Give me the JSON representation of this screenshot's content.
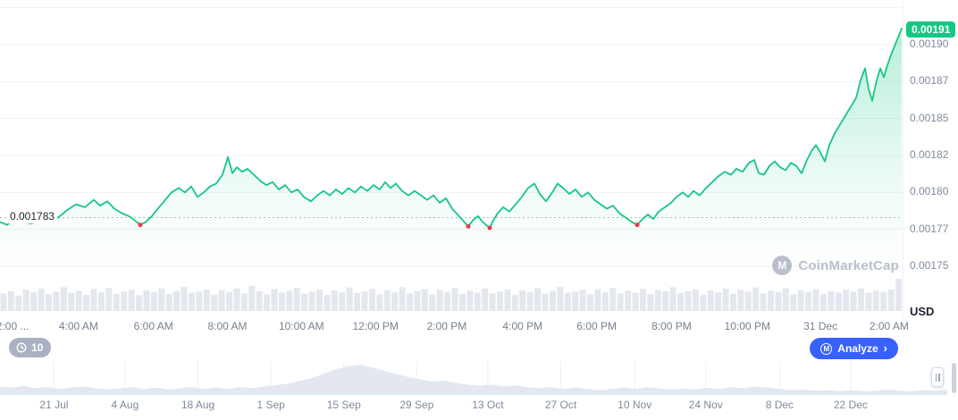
{
  "chart_data": [
    {
      "type": "line",
      "name": "price",
      "unit": "USD",
      "scale": 1e-06,
      "line_color": "#16c784",
      "marker_color": "#ea3943",
      "grid": true,
      "legend": "none",
      "current_price": {
        "label": "0.00191",
        "value": 1910
      },
      "previous_close": {
        "label": "0.001783",
        "value": 1783
      },
      "ylim": [
        1743,
        1918
      ],
      "yticks": [
        {
          "label": "",
          "value": 1925
        },
        {
          "label": "0.00190",
          "value": 1900
        },
        {
          "label": "0.00187",
          "value": 1875
        },
        {
          "label": "0.00185",
          "value": 1850
        },
        {
          "label": "0.00182",
          "value": 1825
        },
        {
          "label": "0.00180",
          "value": 1800
        },
        {
          "label": "0.00177",
          "value": 1775
        },
        {
          "label": "0.00175",
          "value": 1750
        }
      ],
      "xticks": [
        {
          "label": "2:00 ...",
          "pos": 0.014
        },
        {
          "label": "4:00 AM",
          "pos": 0.087
        },
        {
          "label": "6:00 AM",
          "pos": 0.17
        },
        {
          "label": "8:00 AM",
          "pos": 0.252
        },
        {
          "label": "10:00 AM",
          "pos": 0.334
        },
        {
          "label": "12:00 PM",
          "pos": 0.416
        },
        {
          "label": "2:00 PM",
          "pos": 0.495
        },
        {
          "label": "4:00 PM",
          "pos": 0.579
        },
        {
          "label": "6:00 PM",
          "pos": 0.661
        },
        {
          "label": "8:00 PM",
          "pos": 0.744
        },
        {
          "label": "10:00 PM",
          "pos": 0.828
        },
        {
          "label": "31 Dec",
          "pos": 0.909
        },
        {
          "label": "2:00 AM",
          "pos": 0.985
        }
      ],
      "points": [
        [
          0,
          1780
        ],
        [
          8,
          1778
        ],
        [
          15,
          1782
        ],
        [
          25,
          1780
        ],
        [
          35,
          1779
        ],
        [
          45,
          1781
        ],
        [
          55,
          1780
        ],
        [
          65,
          1783
        ],
        [
          75,
          1788
        ],
        [
          85,
          1792
        ],
        [
          95,
          1790
        ],
        [
          105,
          1795
        ],
        [
          112,
          1791
        ],
        [
          120,
          1794
        ],
        [
          128,
          1789
        ],
        [
          136,
          1786
        ],
        [
          144,
          1784
        ],
        [
          151,
          1781
        ],
        [
          157,
          1778
        ],
        [
          163,
          1780
        ],
        [
          170,
          1784
        ],
        [
          178,
          1790
        ],
        [
          185,
          1795
        ],
        [
          192,
          1800
        ],
        [
          200,
          1803
        ],
        [
          207,
          1800
        ],
        [
          214,
          1804
        ],
        [
          221,
          1797
        ],
        [
          228,
          1800
        ],
        [
          235,
          1804
        ],
        [
          242,
          1806
        ],
        [
          249,
          1812
        ],
        [
          255,
          1824
        ],
        [
          260,
          1813
        ],
        [
          265,
          1817
        ],
        [
          271,
          1814
        ],
        [
          277,
          1816
        ],
        [
          284,
          1812
        ],
        [
          291,
          1808
        ],
        [
          298,
          1805
        ],
        [
          305,
          1807
        ],
        [
          312,
          1802
        ],
        [
          319,
          1805
        ],
        [
          326,
          1800
        ],
        [
          333,
          1802
        ],
        [
          340,
          1797
        ],
        [
          348,
          1794
        ],
        [
          355,
          1798
        ],
        [
          362,
          1801
        ],
        [
          369,
          1798
        ],
        [
          376,
          1802
        ],
        [
          383,
          1799
        ],
        [
          390,
          1803
        ],
        [
          397,
          1800
        ],
        [
          404,
          1804
        ],
        [
          411,
          1801
        ],
        [
          418,
          1805
        ],
        [
          425,
          1802
        ],
        [
          431,
          1807
        ],
        [
          437,
          1803
        ],
        [
          443,
          1806
        ],
        [
          450,
          1801
        ],
        [
          457,
          1798
        ],
        [
          464,
          1801
        ],
        [
          471,
          1798
        ],
        [
          478,
          1795
        ],
        [
          485,
          1798
        ],
        [
          492,
          1793
        ],
        [
          499,
          1796
        ],
        [
          506,
          1789
        ],
        [
          512,
          1785
        ],
        [
          518,
          1781
        ],
        [
          524,
          1777
        ],
        [
          529,
          1781
        ],
        [
          535,
          1784
        ],
        [
          540,
          1780
        ],
        [
          544,
          1778
        ],
        [
          548,
          1776
        ],
        [
          552,
          1781
        ],
        [
          557,
          1786
        ],
        [
          563,
          1790
        ],
        [
          570,
          1787
        ],
        [
          577,
          1792
        ],
        [
          584,
          1797
        ],
        [
          591,
          1803
        ],
        [
          598,
          1806
        ],
        [
          604,
          1799
        ],
        [
          611,
          1794
        ],
        [
          618,
          1800
        ],
        [
          624,
          1806
        ],
        [
          630,
          1803
        ],
        [
          637,
          1799
        ],
        [
          644,
          1802
        ],
        [
          651,
          1797
        ],
        [
          658,
          1800
        ],
        [
          665,
          1795
        ],
        [
          672,
          1792
        ],
        [
          679,
          1789
        ],
        [
          686,
          1791
        ],
        [
          693,
          1786
        ],
        [
          700,
          1783
        ],
        [
          707,
          1780
        ],
        [
          713,
          1778
        ],
        [
          719,
          1782
        ],
        [
          725,
          1785
        ],
        [
          731,
          1782
        ],
        [
          737,
          1787
        ],
        [
          744,
          1790
        ],
        [
          751,
          1793
        ],
        [
          757,
          1797
        ],
        [
          764,
          1800
        ],
        [
          770,
          1797
        ],
        [
          776,
          1801
        ],
        [
          783,
          1798
        ],
        [
          790,
          1803
        ],
        [
          797,
          1807
        ],
        [
          804,
          1811
        ],
        [
          811,
          1814
        ],
        [
          818,
          1812
        ],
        [
          824,
          1816
        ],
        [
          831,
          1814
        ],
        [
          838,
          1820
        ],
        [
          844,
          1822
        ],
        [
          849,
          1813
        ],
        [
          855,
          1812
        ],
        [
          861,
          1818
        ],
        [
          867,
          1821
        ],
        [
          873,
          1817
        ],
        [
          879,
          1815
        ],
        [
          885,
          1820
        ],
        [
          891,
          1818
        ],
        [
          897,
          1813
        ],
        [
          903,
          1822
        ],
        [
          908,
          1828
        ],
        [
          913,
          1832
        ],
        [
          918,
          1827
        ],
        [
          923,
          1821
        ],
        [
          928,
          1832
        ],
        [
          934,
          1840
        ],
        [
          940,
          1846
        ],
        [
          946,
          1852
        ],
        [
          952,
          1858
        ],
        [
          958,
          1864
        ],
        [
          963,
          1876
        ],
        [
          968,
          1884
        ],
        [
          972,
          1870
        ],
        [
          976,
          1862
        ],
        [
          981,
          1876
        ],
        [
          985,
          1884
        ],
        [
          989,
          1878
        ],
        [
          993,
          1886
        ],
        [
          997,
          1893
        ],
        [
          1001,
          1899
        ],
        [
          1005,
          1905
        ],
        [
          1009,
          1911
        ]
      ],
      "down_markers": [
        [
          157,
          1778
        ],
        [
          524,
          1777
        ],
        [
          548,
          1776
        ],
        [
          713,
          1778
        ]
      ]
    },
    {
      "type": "bar",
      "name": "volume",
      "color": "#e4e8ee",
      "values": [
        0.55,
        0.62,
        0.48,
        0.66,
        0.58,
        0.7,
        0.52,
        0.6,
        0.74,
        0.57,
        0.63,
        0.5,
        0.68,
        0.59,
        0.72,
        0.54,
        0.61,
        0.66,
        0.49,
        0.64,
        0.58,
        0.71,
        0.53,
        0.62,
        0.75,
        0.56,
        0.6,
        0.67,
        0.51,
        0.65,
        0.59,
        0.7,
        0.55,
        0.78,
        0.62,
        0.52,
        0.68,
        0.57,
        0.63,
        0.72,
        0.54,
        0.6,
        0.66,
        0.5,
        0.64,
        0.58,
        0.73,
        0.56,
        0.61,
        0.69,
        0.52,
        0.65,
        0.59,
        0.74,
        0.55,
        0.62,
        0.68,
        0.51,
        0.66,
        0.6,
        0.72,
        0.53,
        0.63,
        0.57,
        0.7,
        0.55,
        0.61,
        0.67,
        0.5,
        0.64,
        0.58,
        0.71,
        0.54,
        0.62,
        0.75,
        0.56,
        0.6,
        0.66,
        0.52,
        0.68,
        0.59,
        0.72,
        0.55,
        0.63,
        0.57,
        0.69,
        0.53,
        0.65,
        0.61,
        0.74,
        0.56,
        0.62,
        0.67,
        0.51,
        0.64,
        0.58,
        0.7,
        0.54,
        0.66,
        0.6,
        0.73,
        0.55,
        0.63,
        0.58,
        0.71,
        0.52,
        0.65,
        0.59,
        0.68,
        0.54,
        0.62,
        0.57,
        0.66,
        0.6,
        0.7,
        0.56,
        0.64,
        0.59,
        0.67,
        1.0
      ]
    },
    {
      "type": "area",
      "name": "navigator",
      "fill": "#e3e8f0",
      "xticks": [
        {
          "label": "21 Jul",
          "pos": 0.057
        },
        {
          "label": "4 Aug",
          "pos": 0.132
        },
        {
          "label": "18 Aug",
          "pos": 0.209
        },
        {
          "label": "1 Sep",
          "pos": 0.286
        },
        {
          "label": "15 Sep",
          "pos": 0.363
        },
        {
          "label": "29 Sep",
          "pos": 0.44
        },
        {
          "label": "13 Oct",
          "pos": 0.515
        },
        {
          "label": "27 Oct",
          "pos": 0.592
        },
        {
          "label": "10 Nov",
          "pos": 0.67
        },
        {
          "label": "24 Nov",
          "pos": 0.745
        },
        {
          "label": "8 Dec",
          "pos": 0.823
        },
        {
          "label": "22 Dec",
          "pos": 0.898
        }
      ],
      "values": [
        0.28,
        0.24,
        0.3,
        0.22,
        0.26,
        0.2,
        0.24,
        0.28,
        0.22,
        0.18,
        0.22,
        0.26,
        0.2,
        0.24,
        0.18,
        0.22,
        0.26,
        0.2,
        0.24,
        0.2,
        0.26,
        0.22,
        0.28,
        0.32,
        0.38,
        0.46,
        0.56,
        0.7,
        0.85,
        0.95,
        1.0,
        0.92,
        0.8,
        0.7,
        0.6,
        0.52,
        0.44,
        0.48,
        0.4,
        0.34,
        0.3,
        0.34,
        0.28,
        0.32,
        0.26,
        0.22,
        0.26,
        0.2,
        0.24,
        0.2,
        0.16,
        0.2,
        0.24,
        0.2,
        0.26,
        0.22,
        0.18,
        0.22,
        0.18,
        0.24,
        0.2,
        0.26,
        0.22,
        0.28,
        0.24,
        0.2,
        0.16,
        0.18,
        0.14,
        0.16,
        0.12,
        0.16,
        0.12,
        0.14,
        0.18,
        0.14,
        0.12,
        0.16,
        0.14,
        0.18
      ]
    }
  ],
  "watermark": {
    "text": "CoinMarketCap",
    "logo": "M"
  },
  "controls": {
    "history_count": "10",
    "analyze_label": "Analyze",
    "analyze_chevron": "›",
    "logo_letter": "M"
  }
}
